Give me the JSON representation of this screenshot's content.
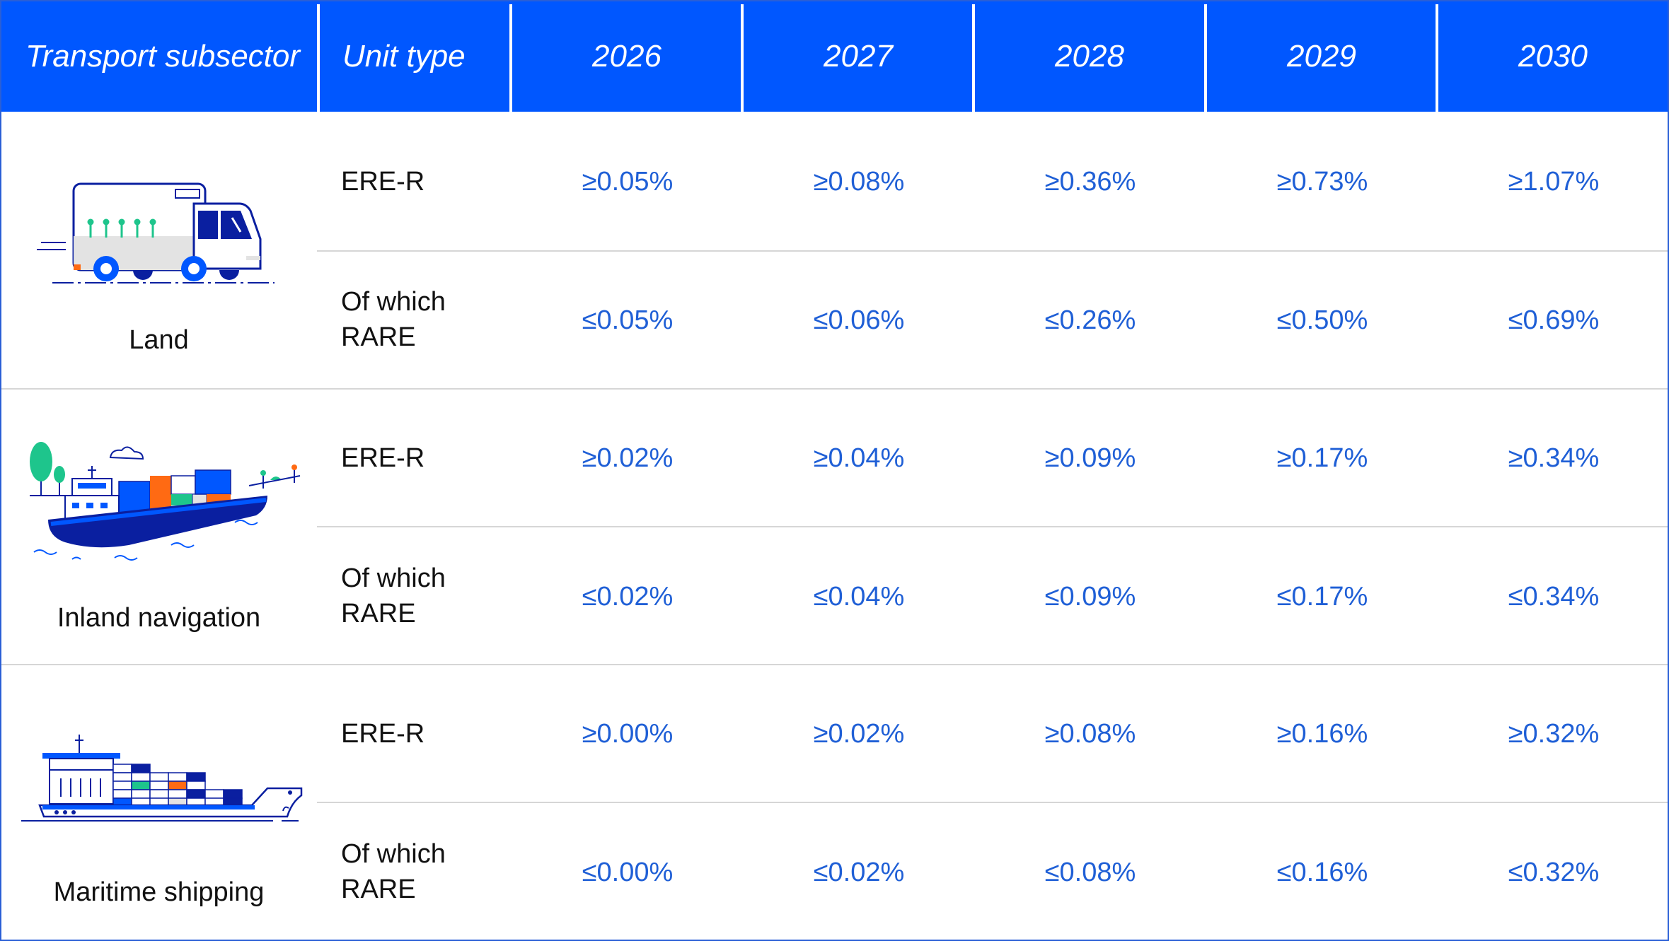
{
  "headers": [
    "Transport subsector",
    "Unit type",
    "2026",
    "2027",
    "2028",
    "2029",
    "2030"
  ],
  "sectors": [
    {
      "name": "Land",
      "icon": "truck-icon",
      "rows": [
        {
          "unit": "ERE-R",
          "values": [
            "≥0.05%",
            "≥0.08%",
            "≥0.36%",
            "≥0.73%",
            "≥1.07%"
          ]
        },
        {
          "unit": "Of which RARE",
          "values": [
            "≤0.05%",
            "≤0.06%",
            "≤0.26%",
            "≤0.50%",
            "≤0.69%"
          ]
        }
      ]
    },
    {
      "name": "Inland navigation",
      "icon": "barge-icon",
      "rows": [
        {
          "unit": "ERE-R",
          "values": [
            "≥0.02%",
            "≥0.04%",
            "≥0.09%",
            "≥0.17%",
            "≥0.34%"
          ]
        },
        {
          "unit": "Of which RARE",
          "values": [
            "≤0.02%",
            "≤0.04%",
            "≤0.09%",
            "≤0.17%",
            "≤0.34%"
          ]
        }
      ]
    },
    {
      "name": "Maritime shipping",
      "icon": "container-ship-icon",
      "rows": [
        {
          "unit": "ERE-R",
          "values": [
            "≥0.00%",
            "≥0.02%",
            "≥0.08%",
            "≥0.16%",
            "≥0.32%"
          ]
        },
        {
          "unit": "Of which RARE",
          "values": [
            "≤0.00%",
            "≤0.02%",
            "≤0.08%",
            "≤0.16%",
            "≤0.32%"
          ]
        }
      ]
    }
  ],
  "colors": {
    "header_bg": "#0057ff",
    "value_text": "#1f5fd6",
    "border": "#2a5fd6",
    "accent_green": "#1ec58c",
    "accent_orange": "#ff6a13",
    "navy": "#0a1fa0"
  }
}
